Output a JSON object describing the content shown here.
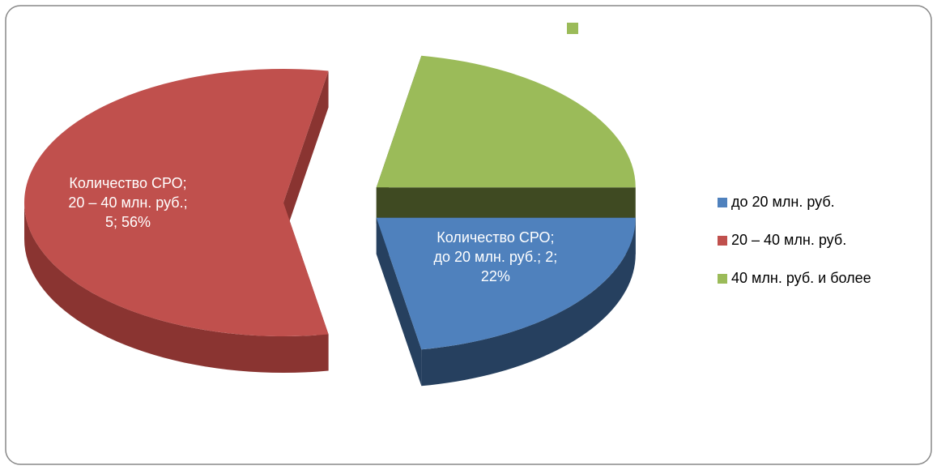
{
  "chart_data": {
    "type": "pie3d",
    "series_name": "Количество СРО",
    "categories": [
      "до 20 млн. руб.",
      "20 – 40 млн. руб.",
      "40 млн. руб. и более"
    ],
    "values": [
      2,
      5,
      2
    ],
    "value_labels": [
      "Количество СРО;\nдо 20 млн. руб.; 2;\n22%",
      "Количество СРО;\n20 – 40 млн. руб.;\n5; 56%",
      null
    ],
    "colors": [
      "#4f81bd",
      "#c0504d",
      "#9bbb59"
    ],
    "side_colors": [
      "#26405f",
      "#8a3431",
      "#3f4a22"
    ],
    "legend": "right"
  }
}
